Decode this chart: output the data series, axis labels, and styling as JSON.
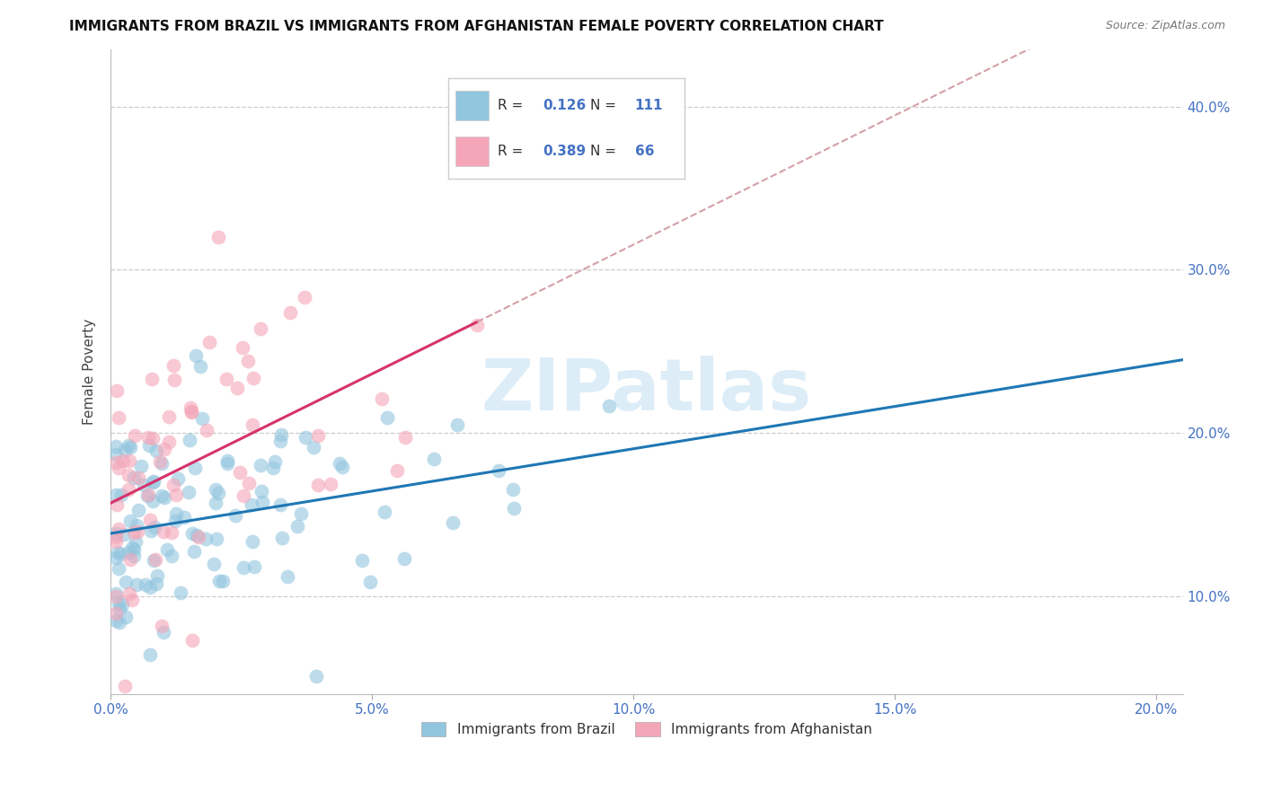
{
  "title": "IMMIGRANTS FROM BRAZIL VS IMMIGRANTS FROM AFGHANISTAN FEMALE POVERTY CORRELATION CHART",
  "source": "Source: ZipAtlas.com",
  "ylabel": "Female Poverty",
  "legend_label1": "Immigrants from Brazil",
  "legend_label2": "Immigrants from Afghanistan",
  "R1": "0.126",
  "N1": "111",
  "R2": "0.389",
  "N2": "66",
  "xmin": 0.0,
  "xmax": 0.205,
  "ymin": 0.04,
  "ymax": 0.435,
  "yticks": [
    0.1,
    0.2,
    0.3,
    0.4
  ],
  "xticks": [
    0.0,
    0.05,
    0.1,
    0.15,
    0.2
  ],
  "color_brazil": "#92c5de",
  "color_afghanistan": "#f4a6b8",
  "trend_color_brazil": "#1f77b4",
  "trend_color_afghanistan": "#d6336c",
  "trend_dashed_color": "#d4a0a8",
  "watermark": "ZIPatlas",
  "tick_color": "#4472c4",
  "brazil_seed": 42,
  "afghan_seed": 99
}
